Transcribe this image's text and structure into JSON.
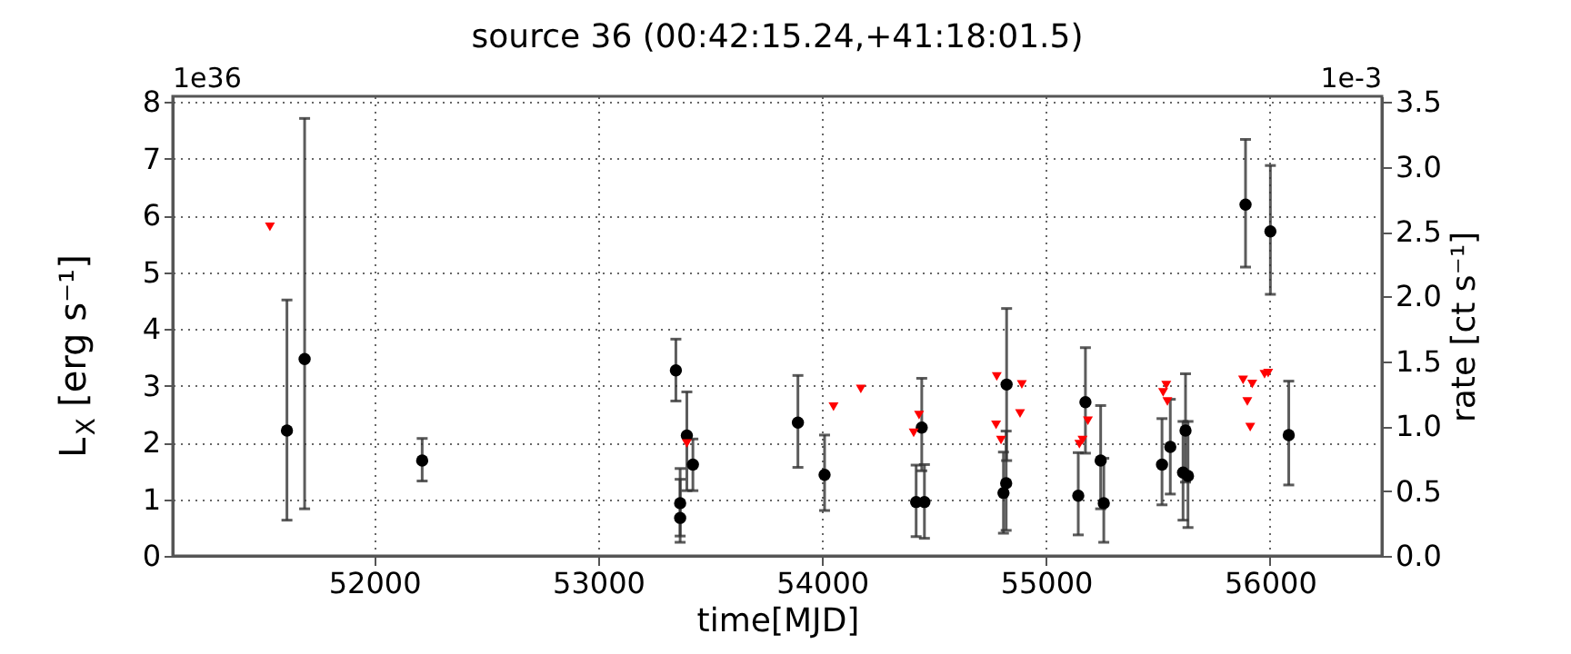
{
  "chart_data": {
    "type": "scatter",
    "title": "source 36    (00:42:15.24,+41:18:01.5)",
    "xlabel": "time[MJD]",
    "ylabel": "L$_{X}$ [erg s⁻¹]",
    "y2label": "rate [ct s⁻¹]",
    "annotations": [
      "1e36",
      "1e-3"
    ],
    "xlim": [
      51100,
      56500
    ],
    "xticks": [
      52000,
      53000,
      54000,
      55000,
      56000
    ],
    "ylim": [
      0,
      8.1
    ],
    "yticks": [
      0,
      1,
      2,
      3,
      4,
      5,
      6,
      7,
      8
    ],
    "y2lim": [
      0,
      3.544
    ],
    "y2ticks": [
      {
        "value": 0,
        "label": "0.0"
      },
      {
        "value": 0.5,
        "label": "0.5"
      },
      {
        "value": 1,
        "label": "1.0"
      },
      {
        "value": 1.5,
        "label": "1.5"
      },
      {
        "value": 2,
        "label": "2.0"
      },
      {
        "value": 2.5,
        "label": "2.5"
      },
      {
        "value": 3,
        "label": "3.0"
      },
      {
        "value": 3.5,
        "label": "3.5"
      }
    ],
    "grid": true,
    "series": [
      {
        "color": "#000000",
        "marker": "circle",
        "x": [
          51610,
          51689,
          52214,
          53347,
          53366,
          53366,
          53396,
          53423,
          53892,
          54011,
          54420,
          54445,
          54457,
          54810,
          54822,
          54824,
          55144,
          55176,
          55244,
          55258,
          55518,
          55555,
          55612,
          55623,
          55634,
          55891,
          56002,
          56084
        ],
        "values": [
          2.21,
          3.47,
          1.68,
          3.27,
          0.93,
          0.67,
          2.12,
          1.61,
          2.35,
          1.43,
          0.95,
          2.26,
          0.95,
          1.11,
          1.28,
          3.02,
          1.06,
          2.71,
          1.68,
          0.93,
          1.61,
          1.92,
          1.47,
          2.21,
          1.41,
          6.19,
          5.72,
          2.13
        ],
        "errors": [
          [
            0.63,
            4.51
          ],
          [
            0.83,
            7.71
          ],
          [
            1.32,
            2.07
          ],
          [
            2.73,
            3.82
          ],
          [
            0.35,
            1.54
          ],
          [
            0.24,
            1.35
          ],
          [
            1.15,
            2.89
          ],
          [
            1.15,
            2.06
          ],
          [
            1.56,
            3.18
          ],
          [
            0.8,
            2.13
          ],
          [
            0.34,
            1.6
          ],
          [
            1.5,
            3.13
          ],
          [
            0.31,
            1.61
          ],
          [
            0.4,
            1.83
          ],
          [
            0.45,
            2.2
          ],
          [
            1.68,
            4.36
          ],
          [
            0.37,
            1.82
          ],
          [
            1.81,
            3.67
          ],
          [
            0.83,
            2.65
          ],
          [
            0.24,
            1.72
          ],
          [
            0.9,
            2.42
          ],
          [
            1.09,
            2.76
          ],
          [
            0.63,
            2.37
          ],
          [
            1.3,
            3.21
          ],
          [
            0.5,
            2.37
          ],
          [
            5.09,
            7.34
          ],
          [
            4.61,
            6.88
          ],
          [
            1.25,
            3.08
          ]
        ]
      },
      {
        "color": "#ff0000",
        "marker": "triangle",
        "x": [
          51534,
          53396,
          54051,
          54173,
          54409,
          54433,
          54777,
          54780,
          54799,
          54884,
          54892,
          55149,
          55163,
          55187,
          55523,
          55537,
          55542,
          55880,
          55899,
          55912,
          55921,
          55976,
          55992
        ],
        "values": [
          5.8,
          1.98,
          2.63,
          2.94,
          2.17,
          2.48,
          2.31,
          3.16,
          2.04,
          2.51,
          3.02,
          1.97,
          2.04,
          2.38,
          2.88,
          3.01,
          2.72,
          3.1,
          2.72,
          2.27,
          3.03,
          3.2,
          3.22
        ]
      }
    ]
  }
}
